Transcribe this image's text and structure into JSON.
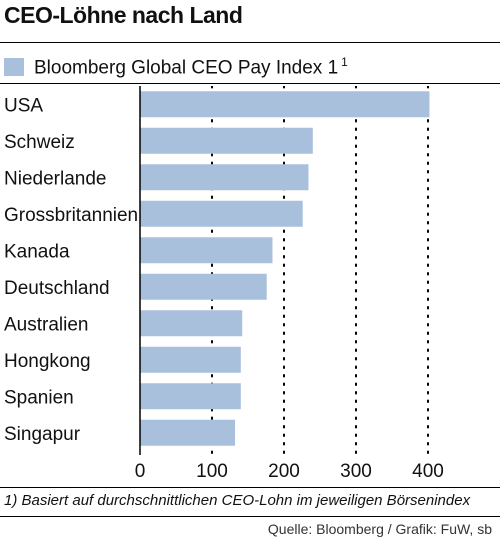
{
  "title": "CEO-Löhne nach Land",
  "legend": {
    "label": "Bloomberg Global CEO Pay Index 1",
    "sup": "1",
    "color": "#a9c0dc"
  },
  "footnote": "1) Basiert auf durchschnittlichen CEO-Lohn im jeweiligen Börsenindex",
  "source": "Quelle: Bloomberg / Grafik: FuW, sb",
  "chart_data": {
    "type": "bar",
    "orientation": "horizontal",
    "categories": [
      "USA",
      "Schweiz",
      "Niederlande",
      "Grossbritannien",
      "Kanada",
      "Deutschland",
      "Australien",
      "Hongkong",
      "Spanien",
      "Singapur"
    ],
    "values": [
      402,
      240,
      234,
      226,
      184,
      176,
      142,
      140,
      140,
      132
    ],
    "xlim": [
      0,
      400
    ],
    "ticks": [
      0,
      100,
      200,
      300,
      400
    ],
    "grid": "vertical dotted",
    "bar_color": "#a9c0dc"
  }
}
